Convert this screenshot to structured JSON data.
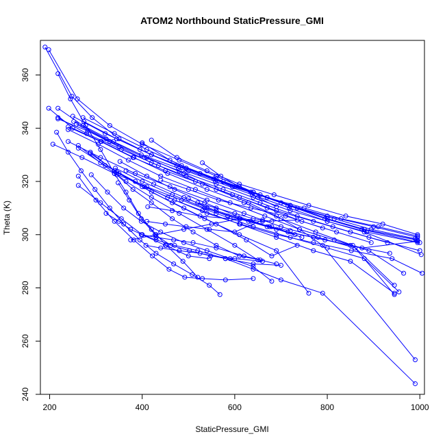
{
  "chart_data": {
    "type": "scatter",
    "title": "ATOM2 Northbound StaticPressure_GMI",
    "xlabel": "StaticPressure_GMI",
    "ylabel": "Theta (K)",
    "xlim": [
      180,
      1010
    ],
    "ylim": [
      240,
      373
    ],
    "xticks": [
      200,
      400,
      600,
      800,
      1000
    ],
    "yticks": [
      240,
      260,
      280,
      300,
      320,
      340,
      360
    ],
    "grid": false,
    "legend": "none",
    "color": "#0000ff",
    "series": [
      {
        "x": [
          190,
          248,
          292,
          350,
          420,
          500,
          600,
          700,
          800,
          900,
          995
        ],
        "y": [
          370.5,
          352,
          344,
          336,
          330,
          324,
          318,
          312,
          307,
          303,
          299
        ]
      },
      {
        "x": [
          198,
          260,
          330,
          400,
          480,
          560,
          640,
          720,
          800,
          880,
          995
        ],
        "y": [
          369.5,
          351,
          341,
          334,
          328,
          322,
          316,
          311,
          306,
          302,
          298
        ]
      },
      {
        "x": [
          218,
          245,
          278,
          310,
          340,
          365,
          392,
          420,
          452,
          488,
          520
        ],
        "y": [
          360.5,
          351,
          341,
          332,
          323,
          316,
          308,
          302,
          296,
          290,
          284
        ]
      },
      {
        "x": [
          198,
          250,
          312,
          382,
          455,
          540,
          620,
          700,
          775,
          855,
          945
        ],
        "y": [
          347.5,
          340,
          335,
          329,
          323,
          317,
          312,
          306,
          301,
          296,
          281
        ]
      },
      {
        "x": [
          218,
          272,
          338,
          410,
          490,
          560,
          630,
          690,
          740,
          790,
          990
        ],
        "y": [
          347.5,
          341,
          335,
          329,
          323,
          317,
          312,
          307,
          302,
          296,
          253
        ]
      },
      {
        "x": [
          218,
          280,
          355,
          435,
          515,
          595,
          670,
          745,
          820,
          895
        ],
        "y": [
          344,
          338,
          332,
          326,
          320,
          315,
          310,
          305,
          301,
          297
        ]
      },
      {
        "x": [
          218,
          282,
          350,
          420,
          495,
          575,
          655,
          735,
          812,
          890,
          1000
        ],
        "y": [
          343.5,
          339,
          333,
          327,
          322,
          317,
          312,
          307,
          303,
          299,
          294
        ]
      },
      {
        "x": [
          240,
          310,
          380,
          450,
          530,
          610,
          690,
          770,
          850,
          930
        ],
        "y": [
          340.5,
          335,
          329,
          324,
          319,
          314,
          309,
          305,
          301,
          297
        ]
      },
      {
        "x": [
          240,
          305,
          370,
          440,
          515,
          590,
          665,
          740,
          815,
          890,
          965
        ],
        "y": [
          339.5,
          334,
          328,
          322,
          317,
          312,
          307,
          302,
          298,
          294,
          285.5
        ]
      },
      {
        "x": [
          250,
          320,
          395,
          475,
          555,
          635,
          715,
          795,
          875,
          1000
        ],
        "y": [
          344.5,
          338,
          332,
          326,
          321,
          316,
          311,
          306,
          302,
          297
        ]
      },
      {
        "x": [
          252,
          322,
          398,
          478,
          558,
          638,
          718,
          800,
          880,
          1003
        ],
        "y": [
          342.5,
          336,
          330,
          325,
          320,
          315,
          310,
          305,
          301,
          292.5
        ]
      },
      {
        "x": [
          258,
          330,
          405,
          480,
          560,
          640,
          720,
          800,
          885,
          995
        ],
        "y": [
          341.5,
          335,
          329,
          324,
          319,
          314,
          309,
          305,
          301,
          297
        ]
      },
      {
        "x": [
          272,
          340,
          410,
          485,
          560,
          640,
          720,
          800,
          880,
          992
        ],
        "y": [
          344,
          338,
          332,
          326,
          321,
          316,
          311,
          306,
          302,
          298
        ]
      },
      {
        "x": [
          274,
          345,
          420,
          495,
          575,
          655,
          735,
          815,
          895,
          990
        ],
        "y": [
          342.5,
          336,
          330,
          325,
          320,
          315,
          310,
          306,
          302,
          298.5
        ]
      },
      {
        "x": [
          240,
          310,
          385,
          460,
          540,
          620,
          700,
          780,
          860,
          945
        ],
        "y": [
          335,
          329,
          323,
          318,
          313,
          308,
          303,
          299,
          295,
          277.5
        ]
      },
      {
        "x": [
          207,
          270,
          340,
          410,
          485,
          560,
          640,
          720,
          800,
          880,
          955
        ],
        "y": [
          334,
          329,
          323,
          318,
          313,
          308,
          303,
          299,
          295,
          291,
          278.5
        ]
      },
      {
        "x": [
          215,
          240,
          268,
          298,
          330,
          360,
          395,
          430,
          468,
          508,
          545,
          568
        ],
        "y": [
          338.5,
          331,
          324,
          317,
          310,
          304,
          298,
          293,
          289,
          285,
          281,
          277.5
        ]
      },
      {
        "x": [
          262,
          310,
          365,
          420,
          480,
          540,
          600,
          650
        ],
        "y": [
          333.5,
          327,
          320,
          314,
          308,
          302,
          296,
          290.5
        ]
      },
      {
        "x": [
          262,
          320,
          385,
          455,
          530,
          610,
          690,
          770,
          850,
          945
        ],
        "y": [
          332.5,
          326,
          320,
          314,
          309,
          304,
          299,
          294,
          290,
          278
        ]
      },
      {
        "x": [
          288,
          340,
          400,
          465,
          535,
          610,
          690,
          760
        ],
        "y": [
          331,
          324,
          318,
          312,
          306,
          300,
          294,
          278
        ]
      },
      {
        "x": [
          288,
          350,
          420,
          490,
          560,
          625,
          680,
          735
        ],
        "y": [
          330.5,
          323,
          316,
          310,
          304,
          298,
          292,
          296
        ]
      },
      {
        "x": [
          262,
          300,
          340,
          382,
          422,
          458,
          492,
          530,
          580,
          640
        ],
        "y": [
          322,
          313,
          305,
          298,
          292,
          287,
          284,
          283.5,
          283,
          283.5
        ]
      },
      {
        "x": [
          262,
          310,
          355,
          400,
          450,
          500,
          545
        ],
        "y": [
          318.5,
          312,
          306,
          300,
          296,
          292,
          291
        ]
      },
      {
        "x": [
          290,
          325,
          360,
          398,
          440,
          490,
          540,
          590,
          640,
          680
        ],
        "y": [
          322.5,
          316,
          310,
          305,
          301,
          297,
          294,
          291,
          288,
          282.5
        ]
      },
      {
        "x": [
          322,
          350,
          375,
          400,
          430,
          470,
          520,
          580,
          640,
          700,
          790,
          990
        ],
        "y": [
          308,
          305,
          302,
          300,
          298,
          296,
          294,
          291,
          287,
          283,
          278,
          244
        ]
      },
      {
        "x": [
          342,
          400,
          465,
          535,
          610,
          690,
          770,
          850,
          935
        ],
        "y": [
          325,
          320,
          315,
          310,
          306,
          302,
          299,
          296,
          293
        ]
      },
      {
        "x": [
          345,
          405,
          470,
          540,
          612,
          690,
          770,
          852,
          940,
          1005
        ],
        "y": [
          323.5,
          318,
          313,
          308,
          304,
          300,
          297,
          294,
          291,
          285.5
        ]
      },
      {
        "x": [
          345,
          380,
          420,
          465,
          510,
          560,
          610,
          655
        ],
        "y": [
          322.5,
          317,
          312,
          306,
          301,
          296,
          292,
          290.5
        ]
      },
      {
        "x": [
          348,
          372,
          398,
          428,
          462,
          502,
          548,
          600,
          660
        ],
        "y": [
          319.5,
          313,
          306,
          300,
          296,
          294,
          292,
          291,
          290
        ]
      },
      {
        "x": [
          352,
          410,
          470,
          535,
          605,
          675,
          745
        ],
        "y": [
          327.5,
          322,
          317,
          312,
          307,
          303,
          299
        ]
      },
      {
        "x": [
          365,
          425,
          490,
          560,
          635,
          715,
          795,
          875,
          995
        ],
        "y": [
          324,
          319,
          314,
          309,
          305,
          301,
          298,
          295,
          297.5
        ]
      },
      {
        "x": [
          375,
          430,
          490,
          550,
          612,
          670,
          720
        ],
        "y": [
          298,
          300,
          302,
          304,
          306,
          303,
          301.5
        ]
      },
      {
        "x": [
          398,
          430,
          468,
          510,
          560,
          620,
          690
        ],
        "y": [
          300,
          299,
          298,
          297,
          295,
          292,
          289
        ]
      },
      {
        "x": [
          408,
          440,
          480,
          525,
          580,
          640,
          700
        ],
        "y": [
          296,
          295,
          294,
          293,
          291,
          289,
          288.5
        ]
      },
      {
        "x": [
          410,
          450,
          495,
          545,
          600,
          660
        ],
        "y": [
          305,
          304,
          303,
          302,
          301,
          305.5
        ]
      },
      {
        "x": [
          412,
          465,
          525,
          590,
          660,
          735
        ],
        "y": [
          310.5,
          309,
          307,
          306,
          305,
          305.5
        ]
      },
      {
        "x": [
          420,
          475,
          540,
          610,
          685,
          760,
          840,
          920,
          995
        ],
        "y": [
          335.5,
          329,
          324,
          319,
          315,
          311,
          307,
          304,
          300
        ]
      },
      {
        "x": [
          400,
          460,
          525,
          595,
          670,
          750,
          830,
          910,
          995
        ],
        "y": [
          334.5,
          328,
          323,
          318,
          314,
          310,
          306,
          303,
          299.5
        ]
      },
      {
        "x": [
          440,
          500,
          565,
          635,
          710,
          790
        ],
        "y": [
          320.5,
          317,
          313,
          310,
          307,
          302.5
        ]
      },
      {
        "x": [
          500,
          540,
          585,
          630,
          680,
          730
        ],
        "y": [
          313.5,
          310,
          307,
          305,
          303,
          300
        ]
      },
      {
        "x": [
          530,
          570,
          610,
          650,
          690
        ],
        "y": [
          327,
          322,
          318,
          314,
          310.5
        ]
      },
      {
        "x": [
          520,
          560,
          600,
          640,
          680
        ],
        "y": [
          312,
          310,
          308,
          306,
          305
        ]
      }
    ]
  }
}
